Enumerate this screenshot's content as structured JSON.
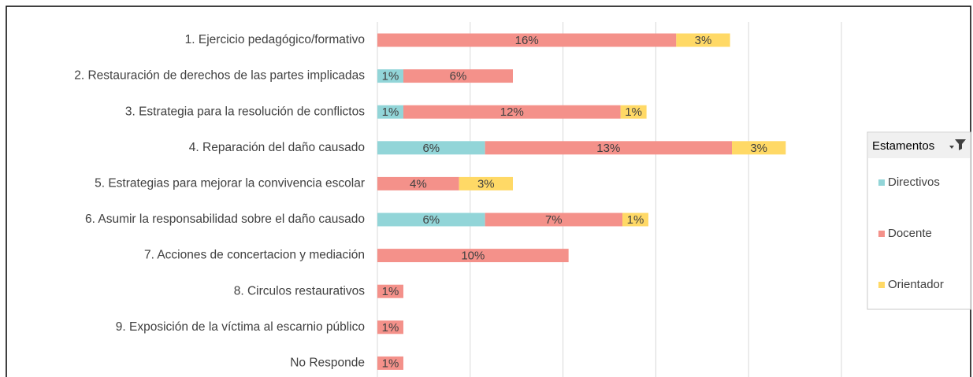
{
  "chart_data": {
    "type": "stacked-bar-horizontal",
    "categories": [
      "1. Ejercicio pedagógico/formativo",
      "2. Restauración de derechos de las partes implicadas",
      "3. Estrategia para la resolución de conflictos",
      "4. Reparación del daño causado",
      "5. Estrategias para mejorar la convivencia escolar",
      "6. Asumir la responsabilidad sobre el daño causado",
      "7. Acciones de concertacion y mediación",
      "8. Circulos restaurativos",
      "9. Exposición de la víctima al escarnio público",
      "No Responde"
    ],
    "series": [
      {
        "name": "Directivos",
        "color": "#92d5d8",
        "values": [
          null,
          1.4,
          1.4,
          5.8,
          null,
          5.8,
          null,
          null,
          null,
          null
        ],
        "value_labels": [
          null,
          "1%",
          "1%",
          "6%",
          null,
          "6%",
          null,
          null,
          null,
          null
        ]
      },
      {
        "name": "Docente",
        "color": "#f4918a",
        "values": [
          16.1,
          5.9,
          11.7,
          13.3,
          4.4,
          7.4,
          10.3,
          1.4,
          1.4,
          1.4
        ],
        "value_labels": [
          "16%",
          "6%",
          "12%",
          "13%",
          "4%",
          "7%",
          "10%",
          "1%",
          "1%",
          "1%"
        ]
      },
      {
        "name": "Orientador",
        "color": "#ffd966",
        "values": [
          2.9,
          null,
          1.4,
          2.9,
          2.9,
          1.4,
          null,
          null,
          null,
          null
        ],
        "value_labels": [
          "3%",
          null,
          "1%",
          "3%",
          "3%",
          "1%",
          null,
          null,
          null,
          null
        ]
      }
    ],
    "xlim": [
      0,
      25
    ],
    "xticks": [
      0,
      5,
      10,
      15,
      20,
      25
    ],
    "grid": true,
    "legend": {
      "title": "Estamentos",
      "position": "right"
    }
  }
}
